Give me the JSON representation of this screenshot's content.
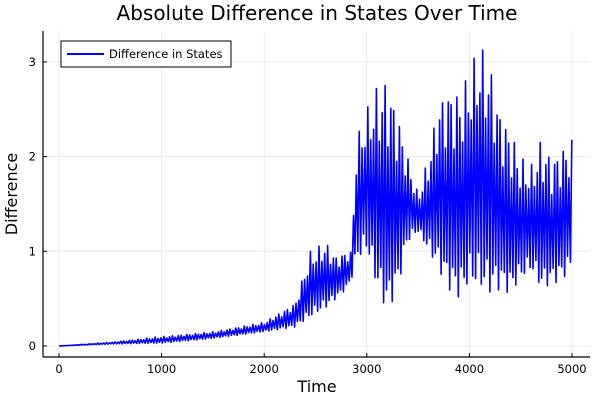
{
  "chart_data": {
    "type": "line",
    "title": "Absolute Difference in States Over Time",
    "xlabel": "Time",
    "ylabel": "Difference",
    "xlim": [
      -150,
      5150
    ],
    "ylim": [
      -0.1,
      3.3
    ],
    "xticks": [
      0,
      1000,
      2000,
      3000,
      4000,
      5000
    ],
    "yticks": [
      0,
      1,
      2,
      3
    ],
    "xtick_labels": [
      "0",
      "1000",
      "2000",
      "3000",
      "4000",
      "5000"
    ],
    "ytick_labels": [
      "0",
      "1",
      "2",
      "3"
    ],
    "grid": true,
    "legend": {
      "position": "top-left",
      "entries": [
        "Difference in States"
      ]
    },
    "series": [
      {
        "name": "Difference in States",
        "color": "#0000ff",
        "oscillation_period": 28,
        "envelope": {
          "time": [
            0,
            500,
            1000,
            1500,
            2000,
            2300,
            2450,
            2600,
            2700,
            2800,
            2850,
            2900,
            3000,
            3100,
            3200,
            3300,
            3400,
            3500,
            3600,
            3700,
            3800,
            3900,
            4000,
            4100,
            4200,
            4300,
            4400,
            4500,
            4600,
            4700,
            4800,
            4900,
            5000
          ],
          "lower": [
            0,
            0.02,
            0.03,
            0.08,
            0.15,
            0.2,
            0.3,
            0.4,
            0.5,
            0.6,
            0.7,
            0.9,
            1.0,
            0.6,
            0.35,
            0.6,
            1.1,
            1.2,
            1.0,
            0.8,
            0.6,
            0.5,
            0.65,
            0.6,
            0.55,
            0.6,
            0.55,
            0.7,
            0.8,
            0.6,
            0.65,
            0.7,
            0.8
          ],
          "upper": [
            0,
            0.04,
            0.1,
            0.15,
            0.25,
            0.45,
            1.0,
            1.1,
            0.95,
            1.0,
            1.0,
            2.2,
            2.5,
            2.75,
            2.85,
            2.5,
            2.0,
            1.6,
            2.0,
            2.6,
            2.75,
            2.7,
            2.9,
            3.2,
            3.0,
            2.5,
            2.3,
            2.0,
            1.9,
            2.2,
            2.0,
            2.1,
            2.2
          ]
        }
      }
    ]
  }
}
